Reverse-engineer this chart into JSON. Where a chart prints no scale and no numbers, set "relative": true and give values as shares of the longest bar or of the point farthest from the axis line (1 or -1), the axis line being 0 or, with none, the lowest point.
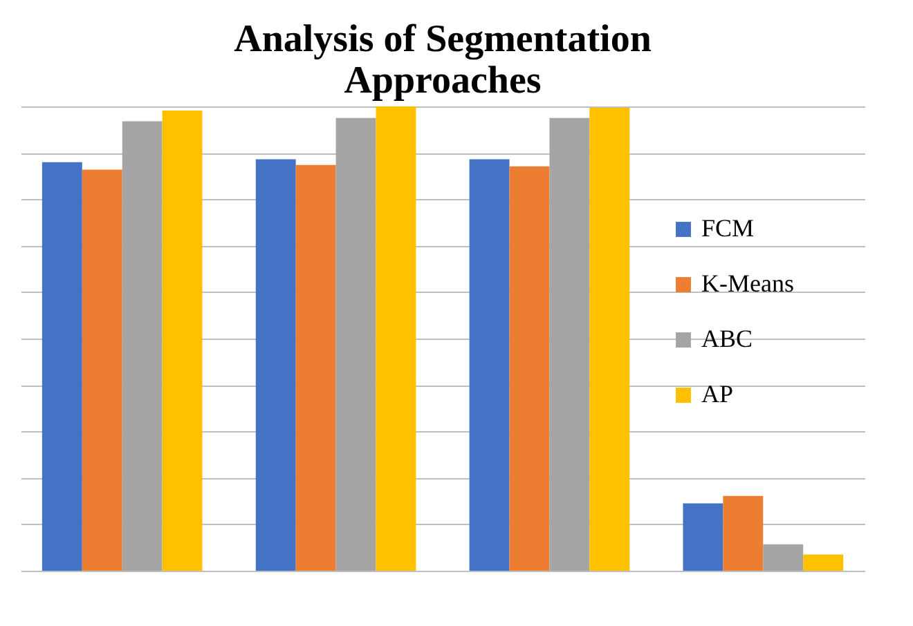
{
  "chart_data": {
    "type": "bar",
    "title": "Analysis of Segmentation Approaches",
    "relative": true,
    "categories": [
      null,
      null,
      null,
      null
    ],
    "series": [
      {
        "name": "FCM",
        "color": "#4472c4",
        "values": [
          0.88,
          0.886,
          0.886,
          0.145
        ]
      },
      {
        "name": "K-Means",
        "color": "#ed7d31",
        "values": [
          0.864,
          0.874,
          0.871,
          0.161
        ]
      },
      {
        "name": "ABC",
        "color": "#a5a5a5",
        "values": [
          0.968,
          0.975,
          0.975,
          0.057
        ]
      },
      {
        "name": "AP",
        "color": "#ffc000",
        "values": [
          0.991,
          1,
          0.997,
          0.035
        ]
      }
    ],
    "grid": "y",
    "legend": "right"
  }
}
